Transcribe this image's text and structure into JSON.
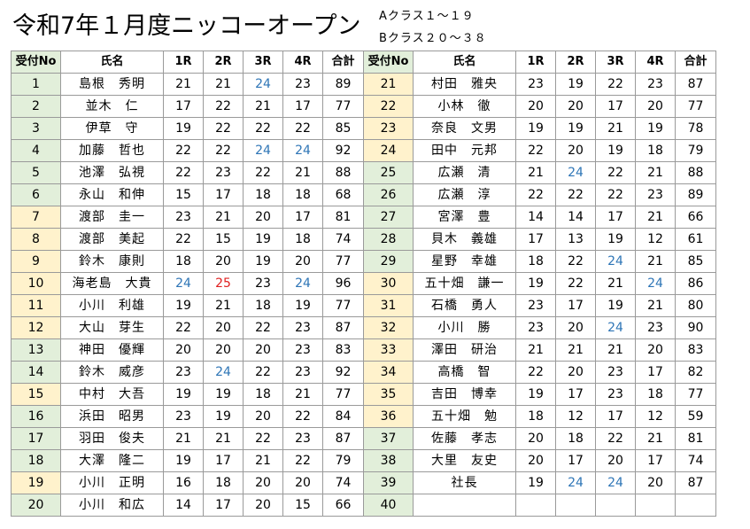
{
  "title": "令和7年１月度ニッコーオープン",
  "class_notes": [
    "Aクラス１～１９",
    "Bクラス２０～３８"
  ],
  "headers": [
    "受付No",
    "氏名",
    "1R",
    "2R",
    "3R",
    "4R",
    "合計",
    "受付No",
    "氏名",
    "1R",
    "2R",
    "3R",
    "4R",
    "合計"
  ],
  "left_rows": [
    {
      "no": "1",
      "name": "島根　秀明",
      "r1": "21",
      "r2": "21",
      "r3": "24",
      "r4": "23",
      "total": "89"
    },
    {
      "no": "2",
      "name": "並木　仁",
      "r1": "17",
      "r2": "22",
      "r3": "21",
      "r4": "17",
      "total": "77"
    },
    {
      "no": "3",
      "name": "伊草　守",
      "r1": "19",
      "r2": "22",
      "r3": "22",
      "r4": "22",
      "total": "85"
    },
    {
      "no": "4",
      "name": "加藤　哲也",
      "r1": "22",
      "r2": "22",
      "r3": "24",
      "r4": "24",
      "total": "92"
    },
    {
      "no": "5",
      "name": "池澤　弘視",
      "r1": "22",
      "r2": "23",
      "r3": "22",
      "r4": "21",
      "total": "88"
    },
    {
      "no": "6",
      "name": "永山　和伸",
      "r1": "15",
      "r2": "17",
      "r3": "18",
      "r4": "18",
      "total": "68"
    },
    {
      "no": "7",
      "name": "渡部　圭一",
      "r1": "23",
      "r2": "21",
      "r3": "20",
      "r4": "17",
      "total": "81"
    },
    {
      "no": "8",
      "name": "渡部　美起",
      "r1": "22",
      "r2": "15",
      "r3": "19",
      "r4": "18",
      "total": "74"
    },
    {
      "no": "9",
      "name": "鈴木　康則",
      "r1": "18",
      "r2": "20",
      "r3": "19",
      "r4": "20",
      "total": "77"
    },
    {
      "no": "10",
      "name": "海老島　大貴",
      "r1": "24",
      "r2": "25",
      "r3": "23",
      "r4": "24",
      "total": "96"
    },
    {
      "no": "11",
      "name": "小川　利雄",
      "r1": "19",
      "r2": "21",
      "r3": "18",
      "r4": "19",
      "total": "77"
    },
    {
      "no": "12",
      "name": "大山　芽生",
      "r1": "22",
      "r2": "20",
      "r3": "22",
      "r4": "23",
      "total": "87"
    },
    {
      "no": "13",
      "name": "神田　優輝",
      "r1": "20",
      "r2": "20",
      "r3": "20",
      "r4": "23",
      "total": "83"
    },
    {
      "no": "14",
      "name": "鈴木　威彦",
      "r1": "23",
      "r2": "24",
      "r3": "22",
      "r4": "23",
      "total": "92"
    },
    {
      "no": "15",
      "name": "中村　大吾",
      "r1": "19",
      "r2": "19",
      "r3": "18",
      "r4": "21",
      "total": "77"
    },
    {
      "no": "16",
      "name": "浜田　昭男",
      "r1": "23",
      "r2": "19",
      "r3": "20",
      "r4": "22",
      "total": "84"
    },
    {
      "no": "17",
      "name": "羽田　俊夫",
      "r1": "21",
      "r2": "21",
      "r3": "22",
      "r4": "23",
      "total": "87"
    },
    {
      "no": "18",
      "name": "大澤　隆二",
      "r1": "19",
      "r2": "17",
      "r3": "21",
      "r4": "22",
      "total": "79"
    },
    {
      "no": "19",
      "name": "小川　正明",
      "r1": "16",
      "r2": "18",
      "r3": "20",
      "r4": "20",
      "total": "74"
    },
    {
      "no": "20",
      "name": "小川　和広",
      "r1": "14",
      "r2": "17",
      "r3": "20",
      "r4": "15",
      "total": "66"
    }
  ],
  "right_rows": [
    {
      "no": "21",
      "name": "村田　雅央",
      "r1": "23",
      "r2": "19",
      "r3": "22",
      "r4": "23",
      "total": "87"
    },
    {
      "no": "22",
      "name": "小林　徹",
      "r1": "20",
      "r2": "20",
      "r3": "17",
      "r4": "20",
      "total": "77"
    },
    {
      "no": "23",
      "name": "奈良　文男",
      "r1": "19",
      "r2": "19",
      "r3": "21",
      "r4": "19",
      "total": "78"
    },
    {
      "no": "24",
      "name": "田中　元邦",
      "r1": "22",
      "r2": "20",
      "r3": "19",
      "r4": "18",
      "total": "79"
    },
    {
      "no": "25",
      "name": "広瀬　清",
      "r1": "21",
      "r2": "24",
      "r3": "22",
      "r4": "21",
      "total": "88"
    },
    {
      "no": "26",
      "name": "広瀬　淳",
      "r1": "22",
      "r2": "22",
      "r3": "22",
      "r4": "23",
      "total": "89"
    },
    {
      "no": "27",
      "name": "宮澤　豊",
      "r1": "14",
      "r2": "14",
      "r3": "17",
      "r4": "21",
      "total": "66"
    },
    {
      "no": "28",
      "name": "貝木　義雄",
      "r1": "17",
      "r2": "13",
      "r3": "19",
      "r4": "12",
      "total": "61"
    },
    {
      "no": "29",
      "name": "星野　幸雄",
      "r1": "18",
      "r2": "22",
      "r3": "24",
      "r4": "21",
      "total": "85"
    },
    {
      "no": "30",
      "name": "五十畑　謙一",
      "r1": "19",
      "r2": "22",
      "r3": "21",
      "r4": "24",
      "total": "86"
    },
    {
      "no": "31",
      "name": "石橋　勇人",
      "r1": "23",
      "r2": "17",
      "r3": "19",
      "r4": "21",
      "total": "80"
    },
    {
      "no": "32",
      "name": "小川　勝",
      "r1": "23",
      "r2": "20",
      "r3": "24",
      "r4": "23",
      "total": "90"
    },
    {
      "no": "33",
      "name": "澤田　研治",
      "r1": "21",
      "r2": "21",
      "r3": "21",
      "r4": "20",
      "total": "83"
    },
    {
      "no": "34",
      "name": "高橋　智",
      "r1": "22",
      "r2": "20",
      "r3": "23",
      "r4": "17",
      "total": "82"
    },
    {
      "no": "35",
      "name": "吉田　博幸",
      "r1": "19",
      "r2": "17",
      "r3": "23",
      "r4": "18",
      "total": "77"
    },
    {
      "no": "36",
      "name": "五十畑　勉",
      "r1": "18",
      "r2": "12",
      "r3": "17",
      "r4": "12",
      "total": "59"
    },
    {
      "no": "37",
      "name": "佐藤　孝志",
      "r1": "20",
      "r2": "18",
      "r3": "22",
      "r4": "21",
      "total": "81"
    },
    {
      "no": "38",
      "name": "大里　友史",
      "r1": "20",
      "r2": "17",
      "r3": "20",
      "r4": "17",
      "total": "74"
    },
    {
      "no": "39",
      "name": "社長",
      "r1": "19",
      "r2": "24",
      "r3": "24",
      "r4": "20",
      "total": "87"
    },
    {
      "no": "40",
      "name": "",
      "r1": "",
      "r2": "",
      "r3": "",
      "r4": "",
      "total": ""
    }
  ],
  "colors": {
    "no_cell_green": "#e2efda",
    "no_cell_yellow": "#fff2cc",
    "highlight_24": "#2e75b6",
    "highlight_25": "#e02020"
  }
}
